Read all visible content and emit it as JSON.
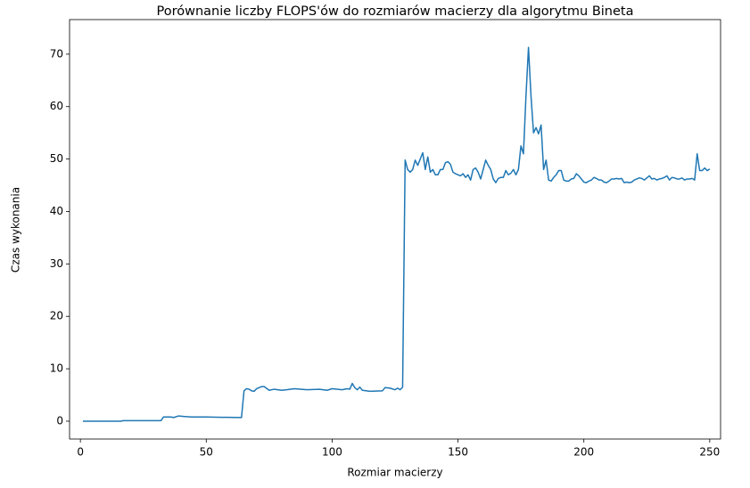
{
  "chart_data": {
    "type": "line",
    "title": "Porównanie liczby FLOPS'ów do rozmiarów macierzy dla algorytmu Bineta",
    "xlabel": "Rozmiar macierzy",
    "ylabel": "Czas wykonania",
    "xlim": [
      -4.3,
      254.3
    ],
    "ylim": [
      -3.4,
      76.6
    ],
    "xticks": [
      0,
      50,
      100,
      150,
      200,
      250
    ],
    "yticks": [
      0,
      10,
      20,
      30,
      40,
      50,
      60,
      70
    ],
    "grid": false,
    "series": [
      {
        "color": "#1f77b4",
        "x": [
          1,
          16,
          17,
          32,
          33,
          36,
          37,
          39,
          41,
          44,
          50,
          56,
          64,
          65,
          66,
          67,
          68,
          69,
          70,
          72,
          73,
          75,
          77,
          80,
          82,
          85,
          90,
          95,
          98,
          100,
          104,
          106,
          107,
          108,
          109,
          110,
          111,
          112,
          115,
          120,
          121,
          123,
          125,
          126,
          127,
          128,
          129,
          130,
          131,
          132,
          133,
          134,
          135,
          136,
          137,
          138,
          139,
          140,
          141,
          142,
          143,
          144,
          145,
          146,
          147,
          148,
          149,
          150,
          151,
          152,
          153,
          154,
          155,
          156,
          157,
          158,
          159,
          160,
          161,
          162,
          163,
          164,
          165,
          166,
          167,
          168,
          169,
          170,
          171,
          172,
          173,
          174,
          175,
          176,
          177,
          178,
          179,
          180,
          181,
          182,
          183,
          184,
          185,
          186,
          187,
          188,
          189,
          190,
          191,
          192,
          193,
          194,
          195,
          196,
          197,
          198,
          199,
          200,
          201,
          202,
          203,
          204,
          205,
          206,
          207,
          208,
          209,
          210,
          211,
          212,
          213,
          214,
          215,
          216,
          217,
          218,
          219,
          220,
          221,
          222,
          223,
          224,
          225,
          226,
          227,
          228,
          229,
          230,
          231,
          232,
          233,
          234,
          235,
          236,
          237,
          238,
          239,
          240,
          241,
          242,
          243,
          244,
          245,
          246,
          247,
          248,
          249,
          250
        ],
        "values": [
          0,
          0,
          0.1,
          0.1,
          0.8,
          0.8,
          0.7,
          1.0,
          0.9,
          0.8,
          0.8,
          0.75,
          0.7,
          5.8,
          6.2,
          6.1,
          5.8,
          5.7,
          6.2,
          6.6,
          6.6,
          5.9,
          6.1,
          5.9,
          6.0,
          6.2,
          6.0,
          6.1,
          5.9,
          6.2,
          6.0,
          6.2,
          6.1,
          7.2,
          6.4,
          6.0,
          6.5,
          5.9,
          5.7,
          5.8,
          6.4,
          6.3,
          6.0,
          6.3,
          6.0,
          6.5,
          49.8,
          48,
          47.5,
          48,
          49.8,
          48.8,
          50,
          51.2,
          48,
          50.4,
          47.5,
          48,
          47,
          47,
          48,
          48,
          49.3,
          49.5,
          49,
          47.5,
          47.2,
          47,
          46.8,
          47.2,
          46.5,
          47,
          46,
          48,
          48.3,
          47.5,
          46.2,
          48,
          49.8,
          48.8,
          48,
          46.2,
          45.5,
          46.3,
          46.5,
          46.5,
          47.8,
          47,
          47.3,
          48,
          47,
          48,
          52.5,
          51,
          62,
          71.3,
          62,
          55,
          56,
          54.8,
          56.5,
          48,
          49.8,
          46,
          45.8,
          46.5,
          47,
          47.8,
          47.8,
          46,
          45.8,
          45.8,
          46.2,
          46.3,
          47.2,
          46.8,
          46.2,
          45.6,
          45.5,
          45.8,
          46,
          46.5,
          46.3,
          46,
          46,
          45.6,
          45.5,
          45.8,
          46.2,
          46.2,
          46.3,
          46.2,
          46.3,
          45.5,
          45.6,
          45.5,
          45.6,
          46,
          46.2,
          46.4,
          46.3,
          46.0,
          46.4,
          46.8,
          46.2,
          46.3,
          46,
          46.2,
          46.3,
          46.5,
          46.8,
          46,
          46.5,
          46.4,
          46.2,
          46.2,
          46.4,
          46,
          46.2,
          46.2,
          46.3,
          46,
          51,
          47.8,
          47.8,
          48.3,
          47.8,
          48.1
        ]
      }
    ]
  }
}
